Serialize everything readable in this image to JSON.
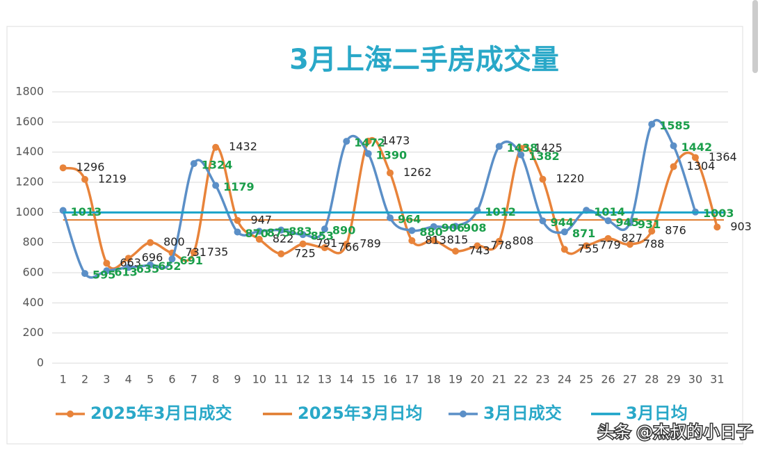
{
  "chart_data": {
    "type": "line",
    "title": "3月上海二手房成交量",
    "categories": [
      "1",
      "2",
      "3",
      "4",
      "5",
      "6",
      "7",
      "8",
      "9",
      "10",
      "11",
      "12",
      "13",
      "14",
      "15",
      "16",
      "17",
      "18",
      "19",
      "20",
      "21",
      "22",
      "23",
      "24",
      "25",
      "26",
      "27",
      "28",
      "29",
      "30",
      "31"
    ],
    "ylim": [
      0,
      1800
    ],
    "yticks": [
      0,
      200,
      400,
      600,
      800,
      1000,
      1200,
      1400,
      1600,
      1800
    ],
    "grid": true,
    "legend": "bottom",
    "series": [
      {
        "name": "2025年3月日成交",
        "color": "#e8833a",
        "kind": "line",
        "values": [
          1296,
          1219,
          663,
          696,
          800,
          731,
          735,
          1432,
          947,
          822,
          725,
          791,
          766,
          789,
          1473,
          1262,
          813,
          815,
          743,
          778,
          808,
          1425,
          1220,
          755,
          779,
          827,
          788,
          876,
          1304,
          1364,
          903
        ]
      },
      {
        "name": "2025年3月日均",
        "color": "#e07b2e",
        "kind": "hline",
        "value": 950
      },
      {
        "name": "3月日成交",
        "color": "#5b8fc7",
        "kind": "line",
        "values": [
          1013,
          595,
          613,
          635,
          652,
          691,
          1324,
          1179,
          870,
          875,
          883,
          853,
          890,
          1472,
          1390,
          964,
          880,
          906,
          908,
          1012,
          1438,
          1382,
          944,
          871,
          1014,
          945,
          931,
          1585,
          1442,
          1003,
          null
        ]
      },
      {
        "name": "3月日均",
        "color": "#1aa3c8",
        "kind": "hline",
        "value": 1000
      }
    ]
  },
  "watermark": "头条 @杰叔的小日子"
}
